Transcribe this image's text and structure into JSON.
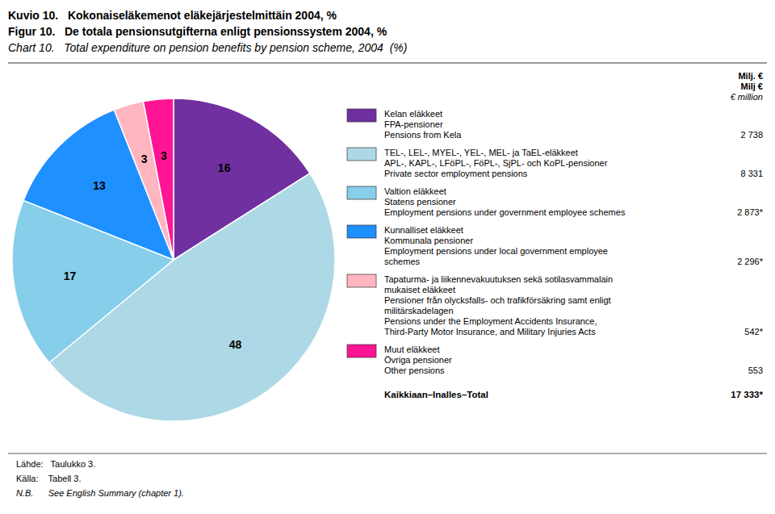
{
  "chart_data": {
    "type": "pie",
    "title": "Kuvio 10.   Kokonaiseläkemenot eläkejärjestelmittäin 2004, %\nFigur 10.   De totala pensionsutgifterna enligt pensionssystem 2004, %\nChart 10.   Total expenditure on pension benefits by pension scheme, 2004  (%)",
    "categories": [
      "Kelan eläkkeet\nFPA-pensioner\nPensions from Kela",
      "TEL-, LEL-, MYEL-, YEL-, MEL- ja TaEL-eläkkeet\nAPL-, KAPL-, LFöPL-, FöPL-, SjPL- och KoPL-pensioner\nPrivate sector employment pensions",
      "Valtion eläkkeet\nStatens pensioner\nEmployment pensions under government employee schemes",
      "Kunnalliset eläkkeet\nKommunala pensioner\nEmployment pensions under local government employee\nschemes",
      "Tapaturma- ja liikennevakuutuksen sekä sotilasvammalain\nmukaiset eläkkeet\nPensioner från olycksfalls- och trafikförsäkring samt enligt\nmilitärskadelagen\nPensions under the Employment Accidents Insurance,\nThird-Party Motor Insurance, and Military Injuries Acts",
      "Muut eläkkeet\nÖvriga pensioner\nOther pensions"
    ],
    "values": [
      16,
      48,
      17,
      13,
      3,
      3
    ],
    "colors": [
      "#7030A0",
      "#ADD8E6",
      "#87CEEB",
      "#1E90FF",
      "#FFB6C1",
      "#FF1493"
    ],
    "data_labels": true,
    "legend": "right",
    "amount_header": "Milj. €\nMilj €\n€ million",
    "amounts": [
      {
        "value": 2738,
        "label": "2 738"
      },
      {
        "value": 8331,
        "label": "8 331"
      },
      {
        "value": 2873,
        "label": "2 873*"
      },
      {
        "value": 2296,
        "label": "2 296*"
      },
      {
        "value": 542,
        "label": "542*"
      },
      {
        "value": 553,
        "label": "553"
      }
    ],
    "total_label": "Kaikkiaan–Inalles–Total",
    "total": {
      "value": 17333,
      "label": "17 333*"
    },
    "annotations": [
      "Lähde:   Taulukko 3.",
      "Källa:    Tabell 3.",
      "N.B.      See English Summary (chapter 1)."
    ]
  }
}
